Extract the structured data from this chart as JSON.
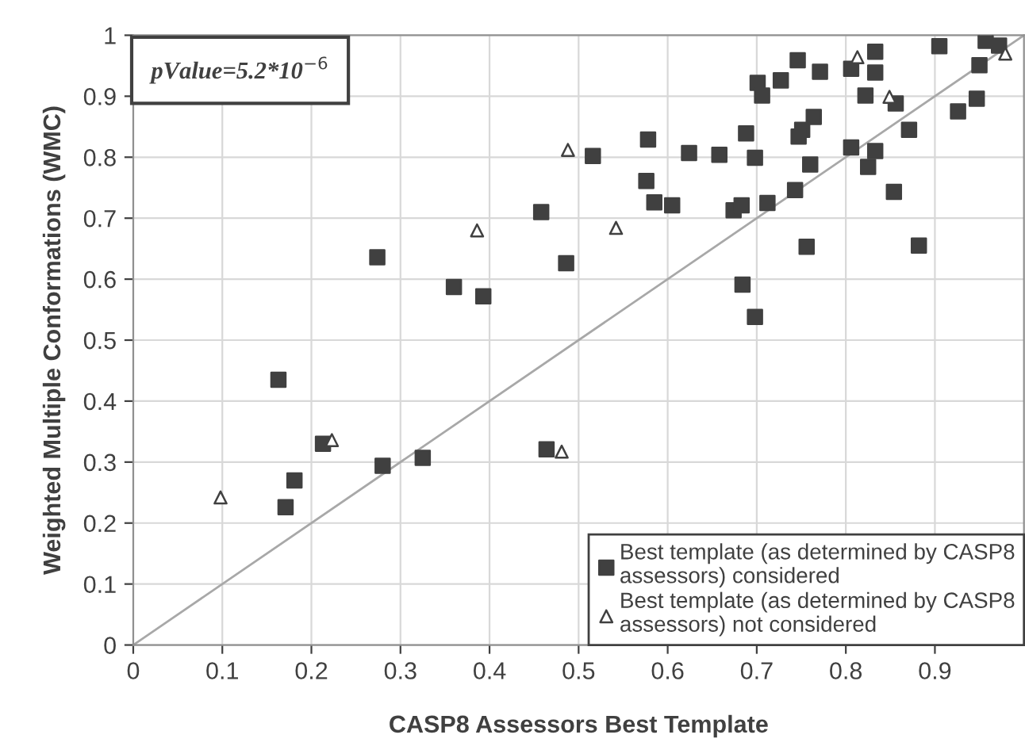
{
  "chart_data": {
    "type": "scatter",
    "xlabel": "CASP8 Assessors Best Template",
    "ylabel": "Weighted Multiple Conformations (WMC)",
    "annotations": [
      "pValue=5.2*10$^{−6}$"
    ],
    "xlim": [
      0,
      1
    ],
    "ylim": [
      0,
      1
    ],
    "xticks": [
      0,
      0.1,
      0.2,
      0.3,
      0.4,
      0.5,
      0.6,
      0.7,
      0.8,
      0.9
    ],
    "yticks": [
      0,
      0.1,
      0.2,
      0.3,
      0.4,
      0.5,
      0.6,
      0.7,
      0.8,
      0.9,
      1
    ],
    "grid": true,
    "legend": "bottom right",
    "series": [
      {
        "name": "Best template (as determined by CASP8\nassessors) considered",
        "color": "#404040",
        "marker": "square",
        "x": [
          0.458,
          0.274,
          0.36,
          0.393,
          0.905,
          0.833,
          0.746,
          0.771,
          0.806,
          0.833,
          0.727,
          0.701,
          0.706,
          0.822,
          0.856,
          0.764,
          0.751,
          0.747,
          0.871,
          0.688,
          0.578,
          0.516,
          0.624,
          0.658,
          0.698,
          0.806,
          0.833,
          0.76,
          0.825,
          0.576,
          0.585,
          0.605,
          0.674,
          0.683,
          0.712,
          0.743,
          0.854,
          0.486,
          0.756,
          0.882,
          0.684,
          0.698,
          0.957,
          0.972,
          0.95,
          0.947,
          0.926,
          0.163,
          0.213,
          0.28,
          0.325,
          0.464,
          0.181,
          0.171
        ],
        "values": [
          0.71,
          0.636,
          0.587,
          0.572,
          0.982,
          0.973,
          0.959,
          0.94,
          0.945,
          0.939,
          0.926,
          0.922,
          0.901,
          0.901,
          0.888,
          0.866,
          0.845,
          0.834,
          0.845,
          0.839,
          0.829,
          0.802,
          0.807,
          0.804,
          0.799,
          0.816,
          0.81,
          0.788,
          0.784,
          0.761,
          0.726,
          0.721,
          0.713,
          0.721,
          0.725,
          0.746,
          0.743,
          0.626,
          0.653,
          0.655,
          0.591,
          0.538,
          0.991,
          0.983,
          0.951,
          0.896,
          0.875,
          0.435,
          0.33,
          0.294,
          0.307,
          0.321,
          0.27,
          0.226
        ]
      },
      {
        "name": "Best template (as determined by CASP8\nassessors) not considered",
        "color": "#404040",
        "marker": "triangle",
        "x": [
          0.386,
          0.813,
          0.849,
          0.488,
          0.542,
          0.979,
          0.223,
          0.481,
          0.098
        ],
        "values": [
          0.68,
          0.964,
          0.899,
          0.812,
          0.684,
          0.97,
          0.336,
          0.317,
          0.242
        ]
      },
      {
        "type": "line",
        "color": "#a8a8a8",
        "x": [
          0,
          1
        ],
        "values": [
          0,
          1
        ]
      }
    ]
  }
}
